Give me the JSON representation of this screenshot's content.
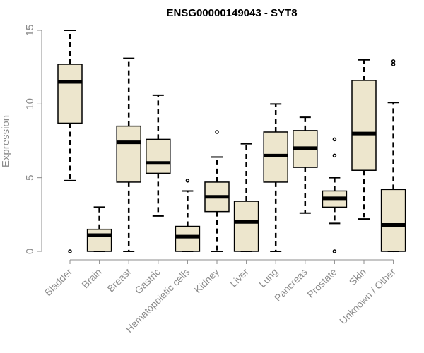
{
  "chart_data": {
    "type": "boxplot",
    "title": "ENSG00000149043 - SYT8",
    "xlabel": "",
    "ylabel": "Expression",
    "ylim": [
      0,
      15
    ],
    "yticks": [
      0,
      5,
      10,
      15
    ],
    "box_fill": "#ede6cd",
    "box_stroke": "#000000",
    "categories": [
      "Bladder",
      "Brain",
      "Breast",
      "Gastric",
      "Hematopoietic cells",
      "Kidney",
      "Liver",
      "Lung",
      "Pancreas",
      "Prostate",
      "Skin",
      "Unknown / Other"
    ],
    "boxes": [
      {
        "min": 4.8,
        "q1": 8.7,
        "median": 11.5,
        "q3": 12.7,
        "max": 15.0,
        "outliers": [
          0.0
        ]
      },
      {
        "min": 0.0,
        "q1": 0.0,
        "median": 1.1,
        "q3": 1.5,
        "max": 3.0,
        "outliers": []
      },
      {
        "min": 0.0,
        "q1": 4.7,
        "median": 7.4,
        "q3": 8.5,
        "max": 13.1,
        "outliers": []
      },
      {
        "min": 2.4,
        "q1": 5.3,
        "median": 6.0,
        "q3": 7.6,
        "max": 10.6,
        "outliers": []
      },
      {
        "min": 0.0,
        "q1": 0.0,
        "median": 1.0,
        "q3": 1.7,
        "max": 4.1,
        "outliers": [
          4.8
        ]
      },
      {
        "min": 0.0,
        "q1": 2.7,
        "median": 3.7,
        "q3": 4.7,
        "max": 6.4,
        "outliers": [
          8.1
        ]
      },
      {
        "min": 0.0,
        "q1": 0.0,
        "median": 2.0,
        "q3": 3.4,
        "max": 7.3,
        "outliers": []
      },
      {
        "min": 0.0,
        "q1": 4.7,
        "median": 6.5,
        "q3": 8.1,
        "max": 10.0,
        "outliers": []
      },
      {
        "min": 2.6,
        "q1": 5.7,
        "median": 7.0,
        "q3": 8.2,
        "max": 9.1,
        "outliers": []
      },
      {
        "min": 1.9,
        "q1": 3.0,
        "median": 3.6,
        "q3": 4.1,
        "max": 5.0,
        "outliers": [
          0.0,
          6.5,
          7.6
        ]
      },
      {
        "min": 2.2,
        "q1": 5.5,
        "median": 8.0,
        "q3": 11.6,
        "max": 13.0,
        "outliers": []
      },
      {
        "min": 0.0,
        "q1": 0.0,
        "median": 1.8,
        "q3": 4.2,
        "max": 10.1,
        "outliers": [
          12.7,
          12.9
        ]
      }
    ]
  }
}
